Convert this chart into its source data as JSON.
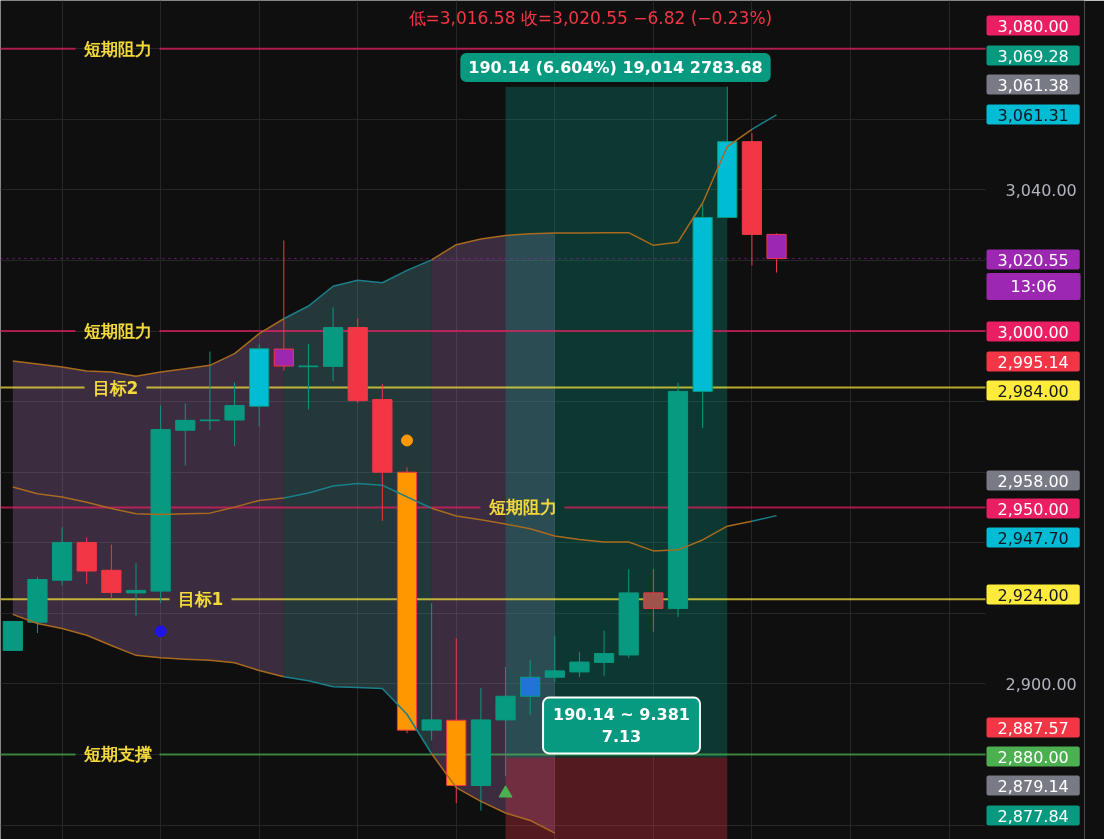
{
  "chart_data": {
    "type": "candlestick",
    "categories": [
      null,
      null,
      null,
      null,
      null,
      null,
      null,
      null,
      null,
      null,
      null,
      null,
      null,
      null,
      null,
      null,
      null,
      null,
      null,
      null,
      null,
      null,
      null,
      null,
      null,
      null,
      null,
      null,
      null,
      null,
      null,
      null,
      null,
      null,
      null,
      null,
      null,
      null,
      null,
      null,
      null,
      null,
      null,
      null
    ],
    "ohlc": [
      [
        2909.5,
        2917.7,
        2909.5,
        2917.7
      ],
      [
        2917.5,
        2930.4,
        2914.4,
        2929.6
      ],
      [
        2929.4,
        2944.4,
        2927.9,
        2940.1
      ],
      [
        2940.1,
        2941.5,
        2928.4,
        2932.0
      ],
      [
        2932.2,
        2939.5,
        2924.0,
        2925.9
      ],
      [
        2925.8,
        2934.2,
        2919.2,
        2926.5
      ],
      [
        2926.3,
        2978.9,
        2922.9,
        2972.1
      ],
      [
        2971.9,
        2979.5,
        2961.9,
        2974.7
      ],
      [
        2974.6,
        2994.2,
        2971.9,
        2974.8
      ],
      [
        2974.8,
        2985.5,
        2967.4,
        2978.9
      ],
      [
        2978.7,
        2996.2,
        2973.0,
        2995.0
      ],
      [
        2994.9,
        3025.7,
        2988.8,
        2990.1
      ],
      [
        2989.9,
        2996.4,
        2977.8,
        2990.1
      ],
      [
        2990.0,
        3006.7,
        2985.8,
        3001.0
      ],
      [
        3001.0,
        3003.6,
        2979.6,
        2980.3
      ],
      [
        2980.6,
        2985.0,
        2946.2,
        2960.0
      ],
      [
        2960.0,
        2961.4,
        2886.0,
        2886.9
      ],
      [
        2886.9,
        2922.9,
        2884.0,
        2889.8
      ],
      [
        2889.7,
        2912.9,
        2866.2,
        2871.2
      ],
      [
        2871.2,
        2898.9,
        2864.1,
        2889.8
      ],
      [
        2889.8,
        2904.8,
        2873.8,
        2896.5
      ],
      [
        2896.5,
        2906.8,
        2891.1,
        2901.9
      ],
      [
        2901.9,
        2913.7,
        2900.5,
        2903.7
      ],
      [
        2903.4,
        2909.0,
        2902.0,
        2906.2
      ],
      [
        2906.1,
        2915.1,
        2902.3,
        2908.6
      ],
      [
        2908.2,
        2932.5,
        2907.4,
        2925.8
      ],
      [
        2925.8,
        2932.5,
        2914.8,
        2921.4
      ],
      [
        2921.4,
        2985.4,
        2919.0,
        2982.9
      ],
      [
        2982.9,
        3036.3,
        2972.5,
        3032.2
      ],
      [
        3032.2,
        3069.28,
        3032.0,
        3053.7
      ],
      [
        3053.7,
        3056.1,
        3018.6,
        3027.4
      ],
      [
        3027.4,
        3027.7,
        3016.58,
        3020.55
      ],
      null,
      null,
      null,
      null,
      null,
      null,
      null,
      null,
      null,
      null,
      null,
      null
    ],
    "colors": [
      "#089981",
      "#089981",
      "#089981",
      "#f23645",
      "#f23645",
      "#089981",
      "#089981",
      "#089981",
      "#089981",
      "#089981",
      "#00bcd4",
      "#9c27b0",
      "#089981",
      "#089981",
      "#f23645",
      "#f23645",
      "#ff9800",
      "#089981",
      "#ff9800",
      "#089981",
      "#089981",
      "#2272d8",
      "#089981",
      "#089981",
      "#089981",
      "#089981",
      "#a0524b",
      "#089981",
      "#00bcd4",
      "#00bcd4",
      "#f23645",
      "#9c27b0",
      null,
      null,
      null,
      null,
      null,
      null,
      null,
      null,
      null,
      null,
      null,
      null
    ],
    "series": [
      {
        "type": "area",
        "color": "#a16fae",
        "values": [
          null,
          null,
          null,
          null,
          null,
          null,
          null,
          null,
          null,
          null,
          null,
          null,
          null,
          null,
          null,
          null,
          null,
          null,
          null,
          null,
          null,
          null,
          null,
          null,
          null,
          null,
          null,
          null,
          null,
          null,
          null,
          null,
          null,
          null,
          null,
          null,
          null,
          null,
          null,
          null,
          null,
          null,
          null,
          null
        ],
        "lower": [
          2919.7,
          2917.1,
          2915.7,
          2913.8,
          2910.9,
          2908.1,
          2907.4,
          2907.0,
          2906.7,
          2906.0,
          2903.8,
          2902.0,
          null,
          null,
          null,
          null,
          null,
          2880.2,
          2870.6,
          2866.7,
          2863.4,
          2861.3,
          2857.7,
          null,
          null,
          null,
          null,
          null,
          null,
          null,
          null,
          null,
          null,
          null,
          null,
          null,
          null,
          null,
          null,
          null,
          null,
          null,
          null,
          null
        ],
        "upper": [
          2991.5,
          2990.7,
          2989.8,
          2988.7,
          2988.4,
          2987.2,
          2988.4,
          2989.3,
          2990.3,
          2993.6,
          2999.3,
          3003.5,
          null,
          null,
          null,
          null,
          null,
          3020.2,
          3024.5,
          3026.1,
          3027.1,
          3027.6,
          3027.8,
          null,
          null,
          null,
          null,
          null,
          null,
          null,
          null,
          null,
          null,
          null,
          null,
          null,
          null,
          null,
          null,
          null,
          null,
          null,
          null,
          null
        ]
      },
      {
        "type": "area",
        "color": "#5b979d",
        "values": [
          null,
          null,
          null,
          null,
          null,
          null,
          null,
          null,
          null,
          null,
          null,
          null,
          null,
          null,
          null,
          null,
          null,
          null,
          null,
          null,
          null,
          null,
          null,
          null,
          null,
          null,
          null,
          null,
          null,
          null,
          null,
          null,
          null,
          null,
          null,
          null,
          null,
          null,
          null,
          null,
          null,
          null,
          null,
          null
        ],
        "lower": [
          null,
          null,
          null,
          null,
          null,
          null,
          null,
          null,
          null,
          null,
          null,
          2902.0,
          2900.9,
          2899.2,
          2899.0,
          2898.7,
          2891.4,
          2880.2,
          null,
          null,
          null,
          null,
          null,
          null,
          null,
          null,
          null,
          null,
          null,
          null,
          null,
          null,
          null,
          null,
          null,
          null,
          null,
          null,
          null,
          null,
          null,
          null,
          null,
          null
        ],
        "upper": [
          null,
          null,
          null,
          null,
          null,
          null,
          null,
          null,
          null,
          null,
          null,
          3003.5,
          3007.1,
          3012.7,
          3014.4,
          3013.7,
          3017.2,
          3020.2,
          null,
          null,
          null,
          null,
          null,
          null,
          null,
          null,
          null,
          null,
          null,
          null,
          null,
          null,
          null,
          null,
          null,
          null,
          null,
          null,
          null,
          null,
          null,
          null,
          null,
          null
        ]
      },
      {
        "type": "area",
        "color": "#089981",
        "values": [
          null,
          null,
          null,
          null,
          null,
          null,
          null,
          null,
          null,
          null,
          null,
          null,
          null,
          null,
          null,
          null,
          null,
          null,
          null,
          null,
          null,
          null,
          null,
          null,
          null,
          null,
          null,
          null,
          null,
          null,
          null,
          null,
          null,
          null,
          null,
          null,
          null,
          null,
          null,
          null,
          null,
          null,
          null,
          null
        ],
        "lower": [
          null,
          null,
          null,
          null,
          null,
          null,
          null,
          null,
          null,
          null,
          null,
          null,
          null,
          null,
          null,
          null,
          null,
          null,
          null,
          null,
          2879.14,
          2879.14,
          2879.14,
          2879.14,
          2879.14,
          2879.14,
          2879.14,
          2879.14,
          2879.14,
          2879.14,
          null,
          null,
          null,
          null,
          null,
          null,
          null,
          null,
          null,
          null,
          null,
          null,
          null,
          null
        ],
        "upper": [
          null,
          null,
          null,
          null,
          null,
          null,
          null,
          null,
          null,
          null,
          null,
          null,
          null,
          null,
          null,
          null,
          null,
          null,
          null,
          null,
          3069.28,
          3069.28,
          3069.28,
          3069.28,
          3069.28,
          3069.28,
          3069.28,
          3069.28,
          3069.28,
          3069.28,
          null,
          null,
          null,
          null,
          null,
          null,
          null,
          null,
          null,
          null,
          null,
          null,
          null,
          null
        ]
      },
      {
        "type": "area",
        "color": "#f23645",
        "values": [
          null,
          null,
          null,
          null,
          null,
          null,
          null,
          null,
          null,
          null,
          null,
          null,
          null,
          null,
          null,
          null,
          null,
          null,
          null,
          null,
          null,
          null,
          null,
          null,
          null,
          null,
          null,
          null,
          null,
          null,
          null,
          null,
          null,
          null,
          null,
          null,
          null,
          null,
          null,
          null,
          null,
          null,
          null,
          null
        ],
        "lower": [
          null,
          null,
          null,
          null,
          null,
          null,
          null,
          null,
          null,
          null,
          null,
          null,
          null,
          null,
          null,
          null,
          null,
          null,
          null,
          null,
          2855.9,
          2855.9,
          2855.9,
          2855.9,
          2855.9,
          2855.9,
          2855.9,
          2855.9,
          2855.9,
          2855.9,
          null,
          null,
          null,
          null,
          null,
          null,
          null,
          null,
          null,
          null,
          null,
          null,
          null,
          null
        ],
        "upper": [
          null,
          null,
          null,
          null,
          null,
          null,
          null,
          null,
          null,
          null,
          null,
          null,
          null,
          null,
          null,
          null,
          null,
          null,
          null,
          null,
          2879.14,
          2879.14,
          2879.14,
          2879.14,
          2879.14,
          2879.14,
          2879.14,
          2879.14,
          2879.14,
          2879.14,
          null,
          null,
          null,
          null,
          null,
          null,
          null,
          null,
          null,
          null,
          null,
          null,
          null,
          null
        ]
      },
      {
        "type": "line",
        "color": "#a86a1f",
        "values": [
          2991.5,
          2990.7,
          2989.8,
          2988.7,
          2988.4,
          2987.2,
          2988.4,
          2989.3,
          2990.3,
          2993.6,
          2999.3,
          3003.5,
          null,
          null,
          null,
          null,
          null,
          3020.2,
          3024.5,
          3026.1,
          3027.1,
          3027.6,
          3027.8,
          3027.8,
          3027.9,
          3027.9,
          3024.3,
          3025.2,
          3036.3,
          3052.3,
          3057.2,
          null,
          null,
          null,
          null,
          null,
          null,
          null,
          null,
          null,
          null,
          null,
          null,
          null
        ]
      },
      {
        "type": "line",
        "color": "#1b7f8a",
        "values": [
          null,
          null,
          null,
          null,
          null,
          null,
          null,
          null,
          null,
          null,
          null,
          3003.5,
          3007.1,
          3012.7,
          3014.4,
          3013.7,
          3017.2,
          3020.2,
          null,
          null,
          null,
          null,
          null,
          null,
          null,
          null,
          null,
          null,
          null,
          null,
          3057.2,
          3061.3,
          null,
          null,
          null,
          null,
          null,
          null,
          null,
          null,
          null,
          null,
          null,
          null
        ]
      },
      {
        "type": "line",
        "color": "#a86a1f",
        "values": [
          2955.8,
          2953.9,
          2953.0,
          2951.5,
          2949.7,
          2948.2,
          2948.0,
          2948.2,
          2948.4,
          2950.1,
          2952.0,
          2952.7,
          null,
          null,
          null,
          null,
          null,
          2949.8,
          2947.6,
          2946.5,
          2945.3,
          2944.0,
          2941.9,
          2940.9,
          2940.2,
          2940.2,
          2937.7,
          2938.0,
          2940.8,
          2944.7,
          2946.1,
          null,
          null,
          null,
          null,
          null,
          null,
          null,
          null,
          null,
          null,
          null,
          null,
          null
        ]
      },
      {
        "type": "line",
        "color": "#1b7f8a",
        "values": [
          null,
          null,
          null,
          null,
          null,
          null,
          null,
          null,
          null,
          null,
          null,
          2952.7,
          2954.1,
          2956.1,
          2956.8,
          2956.3,
          2953.0,
          2949.8,
          null,
          null,
          null,
          null,
          null,
          null,
          null,
          null,
          null,
          null,
          null,
          null,
          2946.1,
          2947.7,
          null,
          null,
          null,
          null,
          null,
          null,
          null,
          null,
          null,
          null,
          null,
          null
        ]
      },
      {
        "type": "line",
        "color": "#a86a1f",
        "values": [
          2919.7,
          2917.1,
          2915.7,
          2913.8,
          2910.9,
          2908.1,
          2907.4,
          2907.0,
          2906.7,
          2906.0,
          2903.8,
          2902.0,
          null,
          null,
          null,
          null,
          null,
          2880.2,
          2870.6,
          2866.7,
          2863.4,
          2861.3,
          2857.7,
          null,
          null,
          null,
          null,
          null,
          null,
          null,
          null,
          null,
          null,
          null,
          null,
          null,
          null,
          null,
          null,
          null,
          null,
          null,
          null,
          null
        ]
      },
      {
        "type": "line",
        "color": "#1b7f8a",
        "values": [
          null,
          null,
          null,
          null,
          null,
          null,
          null,
          null,
          null,
          null,
          null,
          2902.0,
          2900.9,
          2899.2,
          2899.0,
          2898.7,
          2891.4,
          2880.2,
          null,
          null,
          null,
          null,
          null,
          null,
          null,
          null,
          null,
          null,
          null,
          null,
          null,
          null,
          null,
          null,
          null,
          null,
          null,
          null,
          null,
          null,
          null,
          null,
          null,
          null
        ]
      },
      {
        "type": "scatter",
        "color": "#1e14e6",
        "marker": "circle",
        "values": [
          null,
          null,
          null,
          null,
          null,
          null,
          2914.9,
          null,
          null,
          null,
          null,
          null,
          null,
          null,
          null,
          null,
          null,
          null,
          null,
          null,
          null,
          null,
          null,
          null,
          null,
          null,
          null,
          null,
          null,
          null,
          null,
          null,
          null,
          null,
          null,
          null,
          null,
          null,
          null,
          null,
          null,
          null,
          null,
          null
        ]
      },
      {
        "type": "scatter",
        "color": "#ff9800",
        "marker": "circle",
        "values": [
          null,
          null,
          null,
          null,
          null,
          null,
          null,
          null,
          null,
          null,
          null,
          null,
          null,
          null,
          null,
          null,
          2969.0,
          null,
          null,
          null,
          null,
          null,
          null,
          null,
          null,
          null,
          null,
          null,
          null,
          null,
          null,
          null,
          null,
          null,
          null,
          null,
          null,
          null,
          null,
          null,
          null,
          null,
          null,
          null
        ]
      },
      {
        "type": "scatter",
        "color": "#4caf50",
        "marker": "triangle",
        "values": [
          null,
          null,
          null,
          null,
          null,
          null,
          null,
          null,
          null,
          null,
          null,
          null,
          null,
          null,
          null,
          null,
          null,
          null,
          null,
          null,
          2869.0,
          null,
          null,
          null,
          null,
          null,
          null,
          null,
          null,
          null,
          null,
          null,
          null,
          null,
          null,
          null,
          null,
          null,
          null,
          null,
          null,
          null,
          null,
          null
        ]
      }
    ],
    "ylim": [
      2855.9,
      3093.7
    ],
    "yticks": [
      {
        "value": 3080,
        "label": null
      },
      {
        "value": 3060,
        "label": null
      },
      {
        "value": 3040,
        "label": "3,040.00"
      },
      {
        "value": 3020,
        "label": null
      },
      {
        "value": 3000,
        "label": null
      },
      {
        "value": 2980,
        "label": null
      },
      {
        "value": 2960,
        "label": null
      },
      {
        "value": 2940,
        "label": null
      },
      {
        "value": 2920,
        "label": null
      },
      {
        "value": 2900,
        "label": "2,900.00"
      },
      {
        "value": 2880,
        "label": null
      },
      {
        "value": 2860,
        "label": null
      }
    ],
    "tick_labels": "y",
    "grid": true,
    "ref_lines": [
      {
        "axis": "y",
        "value": 3080,
        "label": "短期阻力",
        "color": "#e91e63"
      },
      {
        "axis": "y",
        "value": 3000,
        "label": "短期阻力",
        "color": "#e91e63"
      },
      {
        "axis": "y",
        "value": 2950,
        "label": "短期阻力",
        "color": "#e91e63"
      },
      {
        "axis": "y",
        "value": 2984,
        "label": "目标2",
        "color": "#ffeb3b"
      },
      {
        "axis": "y",
        "value": 2924,
        "label": "目标1",
        "color": "#ffeb3b"
      },
      {
        "axis": "y",
        "value": 2880,
        "label": "短期支撑",
        "color": "#4caf50"
      },
      {
        "axis": "y",
        "value": 3020.55,
        "color": "#9c27b0",
        "line_style": "dotted"
      }
    ],
    "annotations": [
      "低=3,016.58 收=3,020.55 −6.82 (−0.23%)",
      "190.14 (6.604%) 19,014 2783.68",
      "190.14 ~ 9.381\n7.13",
      "3,080.00",
      "3,069.28",
      "3,061.38",
      "3,061.31",
      "3,020.55",
      "13:06",
      "3,000.00",
      "2,995.14",
      "2,984.00",
      "2,958.00",
      "2,950.00",
      "2,947.70",
      "2,924.00",
      "2,887.57",
      "2,880.00",
      "2,879.14",
      "2,877.84"
    ]
  }
}
